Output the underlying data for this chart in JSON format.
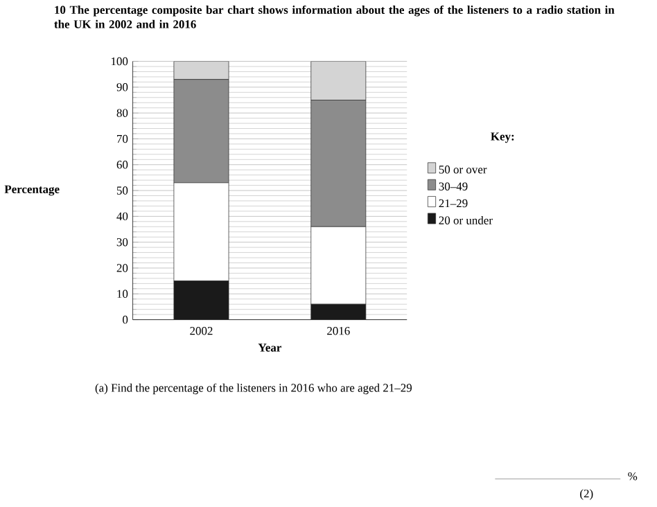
{
  "chart_data": {
    "type": "bar",
    "stacked": true,
    "title": "10 The percentage composite bar chart shows information about the ages of the listeners to a radio station in the UK in 2002 and in 2016",
    "xlabel": "Year",
    "ylabel": "Percentage",
    "legend_title": "Key:",
    "legend": "right",
    "grid": "y",
    "categories": [
      "2002",
      "2016"
    ],
    "series": [
      {
        "name": "20 or under",
        "color": "#1a1a1a",
        "values": [
          15,
          6
        ]
      },
      {
        "name": "21–29",
        "color": "#ffffff",
        "values": [
          38,
          30
        ]
      },
      {
        "name": "30–49",
        "color": "#8c8c8c",
        "values": [
          40,
          49
        ]
      },
      {
        "name": "50 or over",
        "color": "#d4d4d4",
        "values": [
          7,
          15
        ]
      }
    ],
    "ylim": [
      0,
      100
    ],
    "yticks": [
      0,
      10,
      20,
      30,
      40,
      50,
      60,
      70,
      80,
      90,
      100
    ],
    "annotations": [
      "(a) Find the percentage of the listeners in 2016 who are aged 21–29",
      "%",
      "(2)"
    ]
  }
}
